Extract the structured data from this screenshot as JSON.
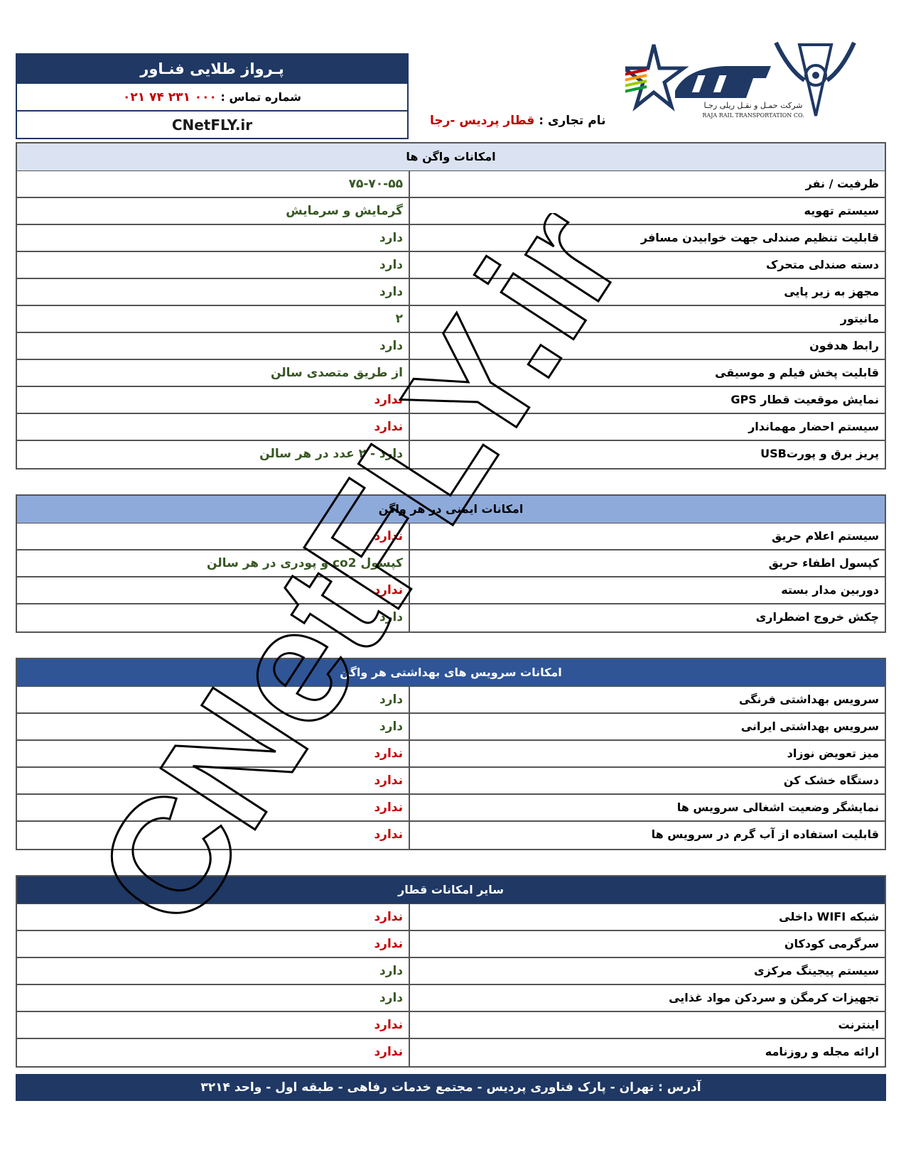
{
  "header": {
    "agency_title": "پـرواز طلایی فنـاور",
    "phone_label": "شماره تماس :",
    "phone_number": "۰۲۱ ۷۴ ۲۳۱ ۰۰۰",
    "website": "CNetFLY.ir",
    "trade_name_label": "نام تجاری :",
    "trade_name_value": "قطار پردیس -رجا",
    "logo_text": "شرکت حمـل و نقـل ریلی رجـا",
    "logo_text_en": "RAJA RAIL TRANSPORTATION CO."
  },
  "colors": {
    "navy": "#1f3864",
    "accent_red": "#c00000",
    "value_green": "#385723"
  },
  "sections": [
    {
      "title": "امکانات واگن ها",
      "rows": [
        {
          "label": "ظرفیت / نفر",
          "value": "۷۵-۷۰-۵۵",
          "status": "green"
        },
        {
          "label": "سیستم تهویه",
          "value": "گرمایش و سرمایش",
          "status": "green"
        },
        {
          "label": "قابلیت تنظیم صندلی جهت خوابیدن مسافر",
          "value": "دارد",
          "status": "green"
        },
        {
          "label": "دسته صندلی متحرک",
          "value": "دارد",
          "status": "green"
        },
        {
          "label": "مجهز به زیر پایی",
          "value": "دارد",
          "status": "green"
        },
        {
          "label": "مانیتور",
          "value": "۲",
          "status": "green"
        },
        {
          "label": "رابط هدفون",
          "value": "دارد",
          "status": "green"
        },
        {
          "label": "قابلیت پخش فیلم و موسیقی",
          "value": "از طریق متصدی سالن",
          "status": "green"
        },
        {
          "label": "نمایش موقعیت قطار GPS",
          "value": "ندارد",
          "status": "red"
        },
        {
          "label": "سیستم احضار مهماندار",
          "value": "ندارد",
          "status": "red"
        },
        {
          "label": "پریز برق و پورتUSB",
          "value": "دارد - ۲ عدد در هر سالن",
          "status": "green"
        }
      ]
    },
    {
      "title": "امکانات ایمنی در هر واگن",
      "rows": [
        {
          "label": "سیستم اعلام حریق",
          "value": "ندارد",
          "status": "red"
        },
        {
          "label": "کپسول اطفاء حریق",
          "value": "کپسول co2 و پودری در هر سالن",
          "status": "green"
        },
        {
          "label": "دوربین مدار بسته",
          "value": "ندارد",
          "status": "red"
        },
        {
          "label": "چکش خروج اضطراری",
          "value": "دارد",
          "status": "green"
        }
      ]
    },
    {
      "title": "امکانات سرویس های بهداشتی هر واگن",
      "rows": [
        {
          "label": "سرویس بهداشتی فرنگی",
          "value": "دارد",
          "status": "green"
        },
        {
          "label": "سرویس بهداشتی ایرانی",
          "value": "دارد",
          "status": "green"
        },
        {
          "label": "میز تعویض نوزاد",
          "value": "ندارد",
          "status": "red"
        },
        {
          "label": "دستگاه خشک کن",
          "value": "ندارد",
          "status": "red"
        },
        {
          "label": "نمایشگر وضعیت اشغالی سرویس ها",
          "value": "ندارد",
          "status": "red"
        },
        {
          "label": "قابلیت استفاده از آب گرم در سرویس ها",
          "value": "ندارد",
          "status": "red"
        }
      ]
    },
    {
      "title": "سایر امکانات قطار",
      "rows": [
        {
          "label": "شبکه WIFI داخلی",
          "value": "ندارد",
          "status": "red"
        },
        {
          "label": "سرگرمی کودکان",
          "value": "ندارد",
          "status": "red"
        },
        {
          "label": "سیستم پیجینگ مرکزی",
          "value": "دارد",
          "status": "green"
        },
        {
          "label": "تجهیزات کرمگن و سردکن مواد غذایی",
          "value": "دارد",
          "status": "green"
        },
        {
          "label": "اینترنت",
          "value": "ندارد",
          "status": "red"
        },
        {
          "label": "ارائه مجله و روزنامه",
          "value": "ندارد",
          "status": "red"
        }
      ]
    }
  ],
  "footer": {
    "address": "آدرس : تهران - پارک فناوری پردیس - مجتمع خدمات رفاهی - طبقه اول - واحد ۳۲۱۴"
  },
  "watermark": "CNetFLY.ir"
}
